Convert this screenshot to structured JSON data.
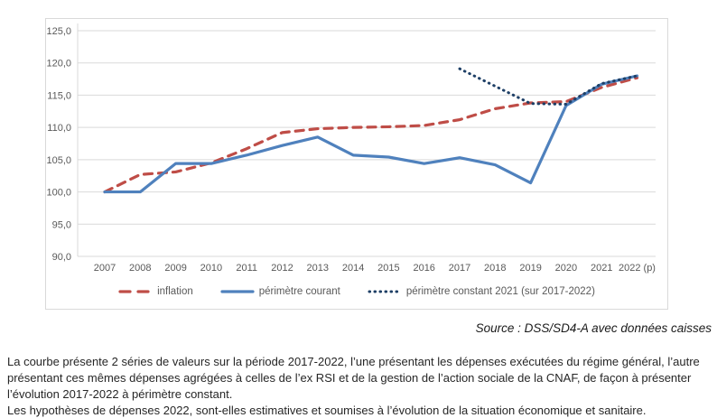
{
  "colors": {
    "grid": "#d9d9d9",
    "frame_border": "#d9d9d9",
    "axis_text": "#595959",
    "inflation": "#bf4d47",
    "perimetre_courant": "#4f81bd",
    "perimetre_constant": "#1e3f66"
  },
  "chart_data": {
    "type": "line",
    "title": "",
    "xlabel": "",
    "ylabel": "",
    "ylim": [
      90,
      125
    ],
    "y_step": 5,
    "grid": true,
    "legend_position": "bottom",
    "y_tick_labels": [
      "125,0",
      "120,0",
      "115,0",
      "110,0",
      "105,0",
      "100,0",
      "95,0",
      "90,0"
    ],
    "categories": [
      "2007",
      "2008",
      "2009",
      "2010",
      "2011",
      "2012",
      "2013",
      "2014",
      "2015",
      "2016",
      "2017",
      "2018",
      "2019",
      "2020",
      "2021",
      "2022 (p)"
    ],
    "series": [
      {
        "id": "inflation",
        "name": "inflation",
        "style": "dashed",
        "color": "#bf4d47",
        "values": [
          100.0,
          102.7,
          103.1,
          104.5,
          106.7,
          109.2,
          109.8,
          110.0,
          110.1,
          110.3,
          111.2,
          112.9,
          113.8,
          114.0,
          116.2,
          117.7
        ]
      },
      {
        "id": "perimetre-courant",
        "name": "périmètre courant",
        "style": "solid",
        "color": "#4f81bd",
        "values": [
          100.0,
          100.0,
          104.4,
          104.4,
          105.7,
          107.2,
          108.5,
          105.7,
          105.4,
          104.4,
          105.3,
          104.2,
          101.4,
          113.4,
          116.7,
          118.0
        ]
      },
      {
        "id": "perimetre-constant",
        "name": "périmètre constant 2021 (sur 2017-2022)",
        "style": "dotted",
        "color": "#1e3f66",
        "values": [
          null,
          null,
          null,
          null,
          null,
          null,
          null,
          null,
          null,
          null,
          119.1,
          116.4,
          113.7,
          113.6,
          116.8,
          118.0
        ]
      }
    ]
  },
  "source": "Source : DSS/SD4-A avec données caisses",
  "footnote": {
    "para1": "La courbe présente 2 séries de valeurs sur la période 2017-2022, l’une présentant les dépenses exécutées du régime général, l’autre présentant ces mêmes dépenses agrégées à celles de l’ex RSI et de la gestion de l’action sociale de la CNAF, de façon à présenter l’évolution 2017-2022 à périmètre constant.",
    "para2": "Les hypothèses de dépenses 2022, sont-elles estimatives et soumises à l’évolution de la situation économique et sanitaire."
  }
}
